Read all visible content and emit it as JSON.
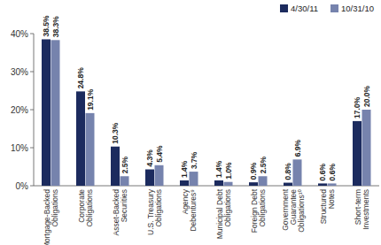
{
  "chart_data": {
    "type": "bar",
    "categories": [
      "Mortgage-Backed Obligations",
      "Corporate Obligations",
      "Asset-Backed Securities",
      "U.S. Treasury Obligations",
      "Agency Debentures⁹",
      "Municipal Debt Obligations",
      "Foreign Debt Obligations",
      "Government Guarantee Obligations¹⁰",
      "Structured Notes",
      "Short-term Investments"
    ],
    "series": [
      {
        "name": "4/30/11",
        "color": "#1c2b5e",
        "values": [
          38.5,
          24.8,
          10.3,
          4.3,
          1.4,
          1.4,
          0.9,
          0.8,
          0.6,
          17.0
        ],
        "value_labels": [
          "38.5%",
          "24.8%",
          "10.3%",
          "4.3%",
          "1.4%",
          "1.4%",
          "0.9%",
          "0.8%",
          "0.6%",
          "17.0%"
        ]
      },
      {
        "name": "10/31/10",
        "color": "#7683ad",
        "values": [
          38.3,
          19.1,
          2.5,
          5.4,
          3.7,
          1.0,
          2.5,
          6.9,
          0.6,
          20.0
        ],
        "value_labels": [
          "38.3%",
          "19.1%",
          "2.5%",
          "5.4%",
          "3.7%",
          "1.0%",
          "2.5%",
          "6.9%",
          "0.6%",
          "20.0%"
        ]
      }
    ],
    "ylim": [
      0,
      40
    ],
    "yticks": [
      {
        "value": 0,
        "label": "0%"
      },
      {
        "value": 10,
        "label": "10%"
      },
      {
        "value": 20,
        "label": "20%"
      },
      {
        "value": 30,
        "label": "30%"
      },
      {
        "value": 40,
        "label": "40%"
      }
    ],
    "grid": false,
    "legend": "top-right",
    "data_labels": true
  }
}
